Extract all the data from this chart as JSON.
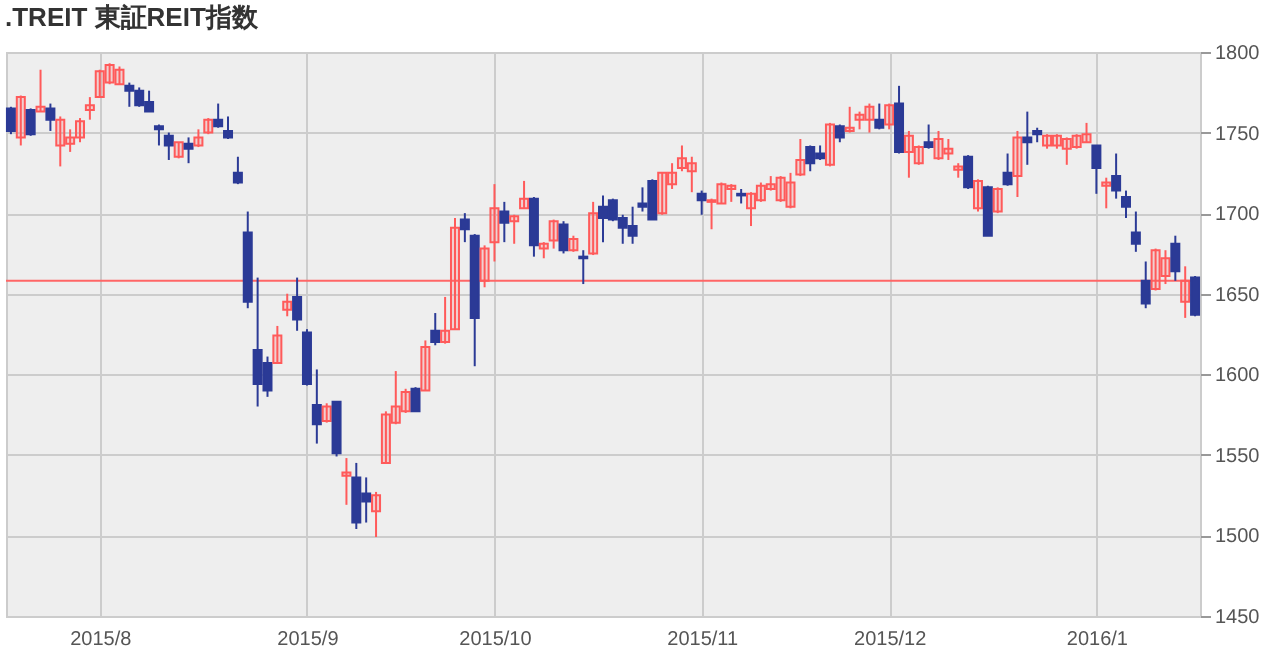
{
  "chart_data": {
    "type": "candlestick",
    "title": ".TREIT 東証REIT指数",
    "categories": [
      null,
      null,
      null,
      null,
      null,
      null,
      null,
      null,
      null,
      "2015/8",
      null,
      null,
      null,
      null,
      null,
      null,
      null,
      null,
      null,
      null,
      null,
      null,
      null,
      null,
      null,
      null,
      null,
      null,
      null,
      null,
      "2015/9",
      null,
      null,
      null,
      null,
      null,
      null,
      null,
      null,
      null,
      null,
      null,
      null,
      null,
      null,
      null,
      null,
      null,
      null,
      "2015/10",
      null,
      null,
      null,
      null,
      null,
      null,
      null,
      null,
      null,
      null,
      null,
      null,
      null,
      null,
      null,
      null,
      null,
      null,
      null,
      null,
      "2015/11",
      null,
      null,
      null,
      null,
      null,
      null,
      null,
      null,
      null,
      null,
      null,
      null,
      null,
      null,
      null,
      null,
      null,
      null,
      "2015/12",
      null,
      null,
      null,
      null,
      null,
      null,
      null,
      null,
      null,
      null,
      null,
      null,
      null,
      null,
      null,
      null,
      null,
      null,
      null,
      null,
      "2016/1",
      null,
      null,
      null,
      null,
      null,
      null,
      null,
      null,
      null,
      null
    ],
    "ohlc": [
      [
        1765,
        1766,
        1749,
        1751
      ],
      [
        1747,
        1773,
        1742,
        1772
      ],
      [
        1764,
        1765,
        1748,
        1749
      ],
      [
        1763,
        1789,
        1763,
        1766
      ],
      [
        1765,
        1768,
        1751,
        1758
      ],
      [
        1742,
        1760,
        1729,
        1758
      ],
      [
        1743,
        1752,
        1738,
        1747
      ],
      [
        1747,
        1759,
        1744,
        1757
      ],
      [
        1764,
        1772,
        1758,
        1767
      ],
      [
        1772,
        1789,
        1772,
        1788
      ],
      [
        1781,
        1793,
        1780,
        1792
      ],
      [
        1780,
        1791,
        1780,
        1789
      ],
      [
        1779,
        1781,
        1766,
        1776
      ],
      [
        1776,
        1778,
        1766,
        1767
      ],
      [
        1769,
        1776,
        1763,
        1763
      ],
      [
        1754,
        1755,
        1742,
        1752
      ],
      [
        1748,
        1750,
        1733,
        1742
      ],
      [
        1735,
        1744,
        1734,
        1744
      ],
      [
        1743,
        1747,
        1731,
        1740
      ],
      [
        1742,
        1752,
        1741,
        1747
      ],
      [
        1750,
        1759,
        1749,
        1758
      ],
      [
        1758,
        1768,
        1753,
        1754
      ],
      [
        1751,
        1760,
        1746,
        1747
      ],
      [
        1725,
        1735,
        1718,
        1719
      ],
      [
        1688,
        1701,
        1641,
        1645
      ],
      [
        1615,
        1660,
        1580,
        1594
      ],
      [
        1607,
        1611,
        1586,
        1590
      ],
      [
        1607,
        1630,
        1607,
        1624
      ],
      [
        1640,
        1650,
        1636,
        1645
      ],
      [
        1648,
        1660,
        1627,
        1634
      ],
      [
        1626,
        1628,
        1593,
        1594
      ],
      [
        1581,
        1603,
        1557,
        1569
      ],
      [
        1571,
        1582,
        1570,
        1580
      ],
      [
        1583,
        1583,
        1549,
        1551
      ],
      [
        1537,
        1548,
        1519,
        1539
      ],
      [
        1536,
        1545,
        1504,
        1508
      ],
      [
        1526,
        1536,
        1508,
        1521
      ],
      [
        1515,
        1527,
        1499,
        1525
      ],
      [
        1545,
        1577,
        1545,
        1575
      ],
      [
        1570,
        1602,
        1569,
        1580
      ],
      [
        1577,
        1591,
        1576,
        1589
      ],
      [
        1591,
        1592,
        1577,
        1577
      ],
      [
        1590,
        1621,
        1590,
        1617
      ],
      [
        1627,
        1638,
        1618,
        1620
      ],
      [
        1620,
        1648,
        1619,
        1627
      ],
      [
        1628,
        1697,
        1628,
        1691
      ],
      [
        1696,
        1700,
        1682,
        1690
      ],
      [
        1686,
        1687,
        1605,
        1635
      ],
      [
        1658,
        1680,
        1654,
        1678
      ],
      [
        1682,
        1718,
        1670,
        1703
      ],
      [
        1701,
        1707,
        1682,
        1694
      ],
      [
        1695,
        1699,
        1681,
        1698
      ],
      [
        1703,
        1720,
        1703,
        1709
      ],
      [
        1709,
        1710,
        1673,
        1680
      ],
      [
        1678,
        1682,
        1672,
        1681
      ],
      [
        1683,
        1696,
        1678,
        1695
      ],
      [
        1693,
        1695,
        1675,
        1677
      ],
      [
        1677,
        1686,
        1676,
        1684
      ],
      [
        1673,
        1677,
        1656,
        1672
      ],
      [
        1675,
        1707,
        1674,
        1700
      ],
      [
        1704,
        1711,
        1682,
        1697
      ],
      [
        1708,
        1709,
        1695,
        1696
      ],
      [
        1697,
        1699,
        1681,
        1691
      ],
      [
        1692,
        1704,
        1681,
        1686
      ],
      [
        1706,
        1716,
        1701,
        1704
      ],
      [
        1720,
        1721,
        1696,
        1696
      ],
      [
        1700,
        1725,
        1699,
        1725
      ],
      [
        1718,
        1731,
        1715,
        1725
      ],
      [
        1728,
        1742,
        1726,
        1734
      ],
      [
        1726,
        1735,
        1713,
        1731
      ],
      [
        1712,
        1714,
        1699,
        1708
      ],
      [
        1707,
        1709,
        1690,
        1708
      ],
      [
        1706,
        1719,
        1706,
        1718
      ],
      [
        1715,
        1718,
        1707,
        1717
      ],
      [
        1712,
        1715,
        1706,
        1711
      ],
      [
        1703,
        1713,
        1692,
        1712
      ],
      [
        1708,
        1719,
        1707,
        1717
      ],
      [
        1715,
        1723,
        1714,
        1718
      ],
      [
        1708,
        1723,
        1707,
        1722
      ],
      [
        1704,
        1725,
        1703,
        1719
      ],
      [
        1724,
        1746,
        1723,
        1733
      ],
      [
        1741,
        1742,
        1726,
        1731
      ],
      [
        1737,
        1742,
        1733,
        1734
      ],
      [
        1730,
        1756,
        1729,
        1755
      ],
      [
        1754,
        1755,
        1744,
        1747
      ],
      [
        1751,
        1766,
        1750,
        1753
      ],
      [
        1758,
        1763,
        1752,
        1761
      ],
      [
        1758,
        1768,
        1750,
        1766
      ],
      [
        1758,
        1768,
        1752,
        1753
      ],
      [
        1755,
        1768,
        1752,
        1767
      ],
      [
        1768,
        1779,
        1737,
        1738
      ],
      [
        1738,
        1751,
        1722,
        1748
      ],
      [
        1731,
        1742,
        1730,
        1741
      ],
      [
        1744,
        1755,
        1740,
        1741
      ],
      [
        1734,
        1751,
        1733,
        1746
      ],
      [
        1737,
        1746,
        1733,
        1740
      ],
      [
        1727,
        1731,
        1722,
        1729
      ],
      [
        1735,
        1736,
        1715,
        1716
      ],
      [
        1703,
        1721,
        1701,
        1720
      ],
      [
        1716,
        1717,
        1686,
        1686
      ],
      [
        1701,
        1716,
        1700,
        1715
      ],
      [
        1725,
        1737,
        1717,
        1718
      ],
      [
        1723,
        1751,
        1710,
        1747
      ],
      [
        1747,
        1763,
        1730,
        1744
      ],
      [
        1751,
        1753,
        1744,
        1749
      ],
      [
        1742,
        1749,
        1740,
        1748
      ],
      [
        1742,
        1749,
        1740,
        1748
      ],
      [
        1740,
        1747,
        1730,
        1746
      ],
      [
        1741,
        1749,
        1740,
        1748
      ],
      [
        1744,
        1756,
        1744,
        1749
      ],
      [
        1742,
        1742,
        1712,
        1728
      ],
      [
        1717,
        1722,
        1703,
        1719
      ],
      [
        1723,
        1737,
        1709,
        1714
      ],
      [
        1710,
        1714,
        1697,
        1704
      ],
      [
        1688,
        1701,
        1676,
        1681
      ],
      [
        1658,
        1670,
        1641,
        1644
      ],
      [
        1653,
        1678,
        1652,
        1677
      ],
      [
        1661,
        1677,
        1656,
        1672
      ],
      [
        1681,
        1686,
        1658,
        1664
      ],
      [
        1645,
        1667,
        1635,
        1658
      ],
      [
        1660,
        1661,
        1636,
        1637
      ]
    ],
    "colors": [
      "#2b3a96",
      "#ff5a5a",
      "#2b3a96",
      "#ff5a5a",
      "#2b3a96",
      "#ff5a5a",
      "#ff5a5a",
      "#ff5a5a",
      "#ff5a5a",
      "#ff5a5a",
      "#ff5a5a",
      "#ff5a5a",
      "#2b3a96",
      "#2b3a96",
      "#2b3a96",
      "#2b3a96",
      "#2b3a96",
      "#ff5a5a",
      "#2b3a96",
      "#ff5a5a",
      "#ff5a5a",
      "#2b3a96",
      "#2b3a96",
      "#2b3a96",
      "#2b3a96",
      "#2b3a96",
      "#2b3a96",
      "#ff5a5a",
      "#ff5a5a",
      "#2b3a96",
      "#2b3a96",
      "#2b3a96",
      "#ff5a5a",
      "#2b3a96",
      "#ff5a5a",
      "#2b3a96",
      "#2b3a96",
      "#ff5a5a",
      "#ff5a5a",
      "#ff5a5a",
      "#ff5a5a",
      "#2b3a96",
      "#ff5a5a",
      "#2b3a96",
      "#ff5a5a",
      "#ff5a5a",
      "#2b3a96",
      "#2b3a96",
      "#ff5a5a",
      "#ff5a5a",
      "#2b3a96",
      "#ff5a5a",
      "#ff5a5a",
      "#2b3a96",
      "#ff5a5a",
      "#ff5a5a",
      "#2b3a96",
      "#ff5a5a",
      "#2b3a96",
      "#ff5a5a",
      "#2b3a96",
      "#2b3a96",
      "#2b3a96",
      "#2b3a96",
      "#2b3a96",
      "#2b3a96",
      "#ff5a5a",
      "#ff5a5a",
      "#ff5a5a",
      "#ff5a5a",
      "#2b3a96",
      "#ff5a5a",
      "#ff5a5a",
      "#ff5a5a",
      "#2b3a96",
      "#ff5a5a",
      "#ff5a5a",
      "#ff5a5a",
      "#ff5a5a",
      "#ff5a5a",
      "#ff5a5a",
      "#2b3a96",
      "#2b3a96",
      "#ff5a5a",
      "#2b3a96",
      "#ff5a5a",
      "#ff5a5a",
      "#ff5a5a",
      "#2b3a96",
      "#ff5a5a",
      "#2b3a96",
      "#ff5a5a",
      "#ff5a5a",
      "#2b3a96",
      "#ff5a5a",
      "#ff5a5a",
      "#ff5a5a",
      "#2b3a96",
      "#ff5a5a",
      "#2b3a96",
      "#ff5a5a",
      "#2b3a96",
      "#ff5a5a",
      "#2b3a96",
      "#2b3a96",
      "#ff5a5a",
      "#ff5a5a",
      "#ff5a5a",
      "#ff5a5a",
      "#ff5a5a",
      "#2b3a96",
      "#ff5a5a",
      "#2b3a96",
      "#2b3a96",
      "#2b3a96",
      "#2b3a96",
      "#ff5a5a",
      "#ff5a5a",
      "#2b3a96",
      "#ff5a5a",
      "#2b3a96"
    ],
    "ylim": [
      1450,
      1800
    ],
    "yticks": [
      1450,
      1500,
      1550,
      1600,
      1650,
      1700,
      1750,
      1800
    ],
    "grid": true,
    "ref_lines": [
      {
        "axis": "y",
        "value": 1658,
        "color": "#ff6666"
      }
    ]
  }
}
